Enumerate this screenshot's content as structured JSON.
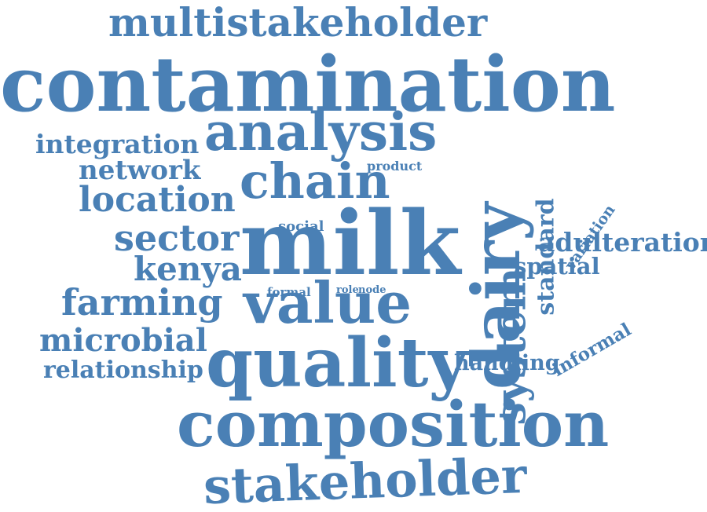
{
  "palette": {
    "word_color": "#4a80b5",
    "background": "#ffffff"
  },
  "words": [
    {
      "text": "contamination",
      "weight": 100,
      "orientation": "horizontal"
    },
    {
      "text": "milk",
      "weight": 92,
      "orientation": "horizontal"
    },
    {
      "text": "composition",
      "weight": 82,
      "orientation": "horizontal"
    },
    {
      "text": "quality",
      "weight": 78,
      "orientation": "horizontal"
    },
    {
      "text": "dairy",
      "weight": 74,
      "orientation": "vertical"
    },
    {
      "text": "analysis",
      "weight": 68,
      "orientation": "horizontal"
    },
    {
      "text": "value",
      "weight": 66,
      "orientation": "horizontal"
    },
    {
      "text": "stakeholder",
      "weight": 62,
      "orientation": "horizontal"
    },
    {
      "text": "system",
      "weight": 58,
      "orientation": "vertical"
    },
    {
      "text": "chain",
      "weight": 56,
      "orientation": "horizontal"
    },
    {
      "text": "multistakeholder",
      "weight": 50,
      "orientation": "horizontal"
    },
    {
      "text": "location",
      "weight": 46,
      "orientation": "horizontal"
    },
    {
      "text": "sector",
      "weight": 46,
      "orientation": "horizontal"
    },
    {
      "text": "farming",
      "weight": 44,
      "orientation": "horizontal"
    },
    {
      "text": "kenya",
      "weight": 42,
      "orientation": "horizontal"
    },
    {
      "text": "microbial",
      "weight": 40,
      "orientation": "horizontal"
    },
    {
      "text": "network",
      "weight": 34,
      "orientation": "horizontal"
    },
    {
      "text": "integration",
      "weight": 32,
      "orientation": "horizontal"
    },
    {
      "text": "standard",
      "weight": 30,
      "orientation": "vertical"
    },
    {
      "text": "adulteration",
      "weight": 30,
      "orientation": "horizontal"
    },
    {
      "text": "relationship",
      "weight": 28,
      "orientation": "horizontal"
    },
    {
      "text": "spatial",
      "weight": 27,
      "orientation": "horizontal"
    },
    {
      "text": "handling",
      "weight": 25,
      "orientation": "horizontal"
    },
    {
      "text": "informal",
      "weight": 22,
      "orientation": "diagonal"
    },
    {
      "text": "variation",
      "weight": 18,
      "orientation": "diagonal"
    },
    {
      "text": "social",
      "weight": 17,
      "orientation": "horizontal"
    },
    {
      "text": "product",
      "weight": 15,
      "orientation": "horizontal"
    },
    {
      "text": "formal",
      "weight": 15,
      "orientation": "horizontal"
    },
    {
      "text": "role",
      "weight": 12,
      "orientation": "horizontal"
    },
    {
      "text": "node",
      "weight": 12,
      "orientation": "horizontal"
    }
  ]
}
